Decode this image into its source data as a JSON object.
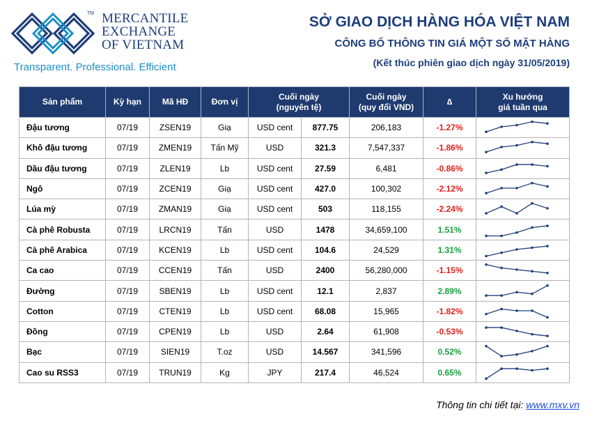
{
  "brand": {
    "line1": "MERCANTILE",
    "line2": "EXCHANGE",
    "line3": "OF VIETNAM",
    "tm": "TM",
    "tagline": "Transparent. Professional. Efficient"
  },
  "header": {
    "title": "SỞ GIAO DỊCH HÀNG HÓA VIỆT NAM",
    "subtitle": "CÔNG BỐ THÔNG TIN GIÁ MỘT SỐ MẶT HÀNG",
    "session": "(Kết thúc phiên giao dịch ngày 31/05/2019)"
  },
  "columns": {
    "product": "Sản phẩm",
    "term": "Kỳ hạn",
    "code": "Mã HĐ",
    "unit": "Đơn vị",
    "close_l1": "Cuối ngày",
    "close_l2": "(nguyên tệ)",
    "vnd_l1": "Cuối ngày",
    "vnd_l2": "(quy đổi VND)",
    "change": "∆",
    "trend_l1": "Xu hướng",
    "trend_l2": "giá tuần qua"
  },
  "rows": [
    {
      "product": "Đậu tương",
      "term": "07/19",
      "code": "ZSEN19",
      "unit": "Giạ",
      "currency": "USD cent",
      "close": "877.75",
      "vnd": "206,183",
      "change": "-1.27%",
      "trend": [
        2,
        5,
        6,
        8,
        7
      ]
    },
    {
      "product": "Khô đậu tương",
      "term": "07/19",
      "code": "ZMEN19",
      "unit": "Tấn Mỹ",
      "currency": "USD",
      "close": "321.3",
      "vnd": "7,547,337",
      "change": "-1.86%",
      "trend": [
        2,
        5,
        6,
        8,
        7
      ]
    },
    {
      "product": "Dầu đậu tương",
      "term": "07/19",
      "code": "ZLEN19",
      "unit": "Lb",
      "currency": "USD cent",
      "close": "27.59",
      "vnd": "6,481",
      "change": "-0.86%",
      "trend": [
        2,
        4,
        7,
        7,
        6
      ]
    },
    {
      "product": "Ngô",
      "term": "07/19",
      "code": "ZCEN19",
      "unit": "Giạ",
      "currency": "USD cent",
      "close": "427.0",
      "vnd": "100,302",
      "change": "-2.12%",
      "trend": [
        2,
        5,
        5,
        8,
        6
      ]
    },
    {
      "product": "Lúa mỳ",
      "term": "07/19",
      "code": "ZMAN19",
      "unit": "Giạ",
      "currency": "USD cent",
      "close": "503",
      "vnd": "118,155",
      "change": "-2.24%",
      "trend": [
        2,
        6,
        2,
        8,
        5
      ]
    },
    {
      "product": "Cà phê Robusta",
      "term": "07/19",
      "code": "LRCN19",
      "unit": "Tấn",
      "currency": "USD",
      "close": "1478",
      "vnd": "34,659,100",
      "change": "1.51%",
      "trend": [
        1,
        1,
        3,
        6,
        7
      ]
    },
    {
      "product": "Cà phê Arabica",
      "term": "07/19",
      "code": "KCEN19",
      "unit": "Lb",
      "currency": "USD cent",
      "close": "104.6",
      "vnd": "24,529",
      "change": "1.31%",
      "trend": [
        1,
        3,
        5,
        6,
        7
      ]
    },
    {
      "product": "Ca cao",
      "term": "07/19",
      "code": "CCEN19",
      "unit": "Tấn",
      "currency": "USD",
      "close": "2400",
      "vnd": "56,280,000",
      "change": "-1.15%",
      "trend": [
        8,
        6,
        5,
        4,
        3
      ]
    },
    {
      "product": "Đường",
      "term": "07/19",
      "code": "SBEN19",
      "unit": "Lb",
      "currency": "USD cent",
      "close": "12.1",
      "vnd": "2,837",
      "change": "2.89%",
      "trend": [
        2,
        2,
        4,
        3,
        8
      ]
    },
    {
      "product": "Cotton",
      "term": "07/19",
      "code": "CTEN19",
      "unit": "Lb",
      "currency": "USD cent",
      "close": "68.08",
      "vnd": "15,965",
      "change": "-1.82%",
      "trend": [
        3,
        6,
        5,
        5,
        1
      ]
    },
    {
      "product": "Đồng",
      "term": "07/19",
      "code": "CPEN19",
      "unit": "Lb",
      "currency": "USD",
      "close": "2.64",
      "vnd": "61,908",
      "change": "-0.53%",
      "trend": [
        7,
        7,
        5,
        3,
        2
      ]
    },
    {
      "product": "Bạc",
      "term": "07/19",
      "code": "SIEN19",
      "unit": "T.oz",
      "currency": "USD",
      "close": "14.567",
      "vnd": "341,596",
      "change": "0.52%",
      "trend": [
        8,
        2,
        3,
        5,
        8
      ]
    },
    {
      "product": "Cao su RSS3",
      "term": "07/19",
      "code": "TRUN19",
      "unit": "Kg",
      "currency": "JPY",
      "close": "217.4",
      "vnd": "46,524",
      "change": "0.65%",
      "trend": [
        1,
        7,
        7,
        6,
        7
      ]
    }
  ],
  "colors": {
    "positive": "#1aa03c",
    "negative": "#e0201b",
    "header_bg": "#1f3a6e",
    "brand": "#1d3e7a"
  },
  "footer": {
    "label": "Thông tin chi tiết tại:",
    "link": "www.mxv.vn"
  }
}
